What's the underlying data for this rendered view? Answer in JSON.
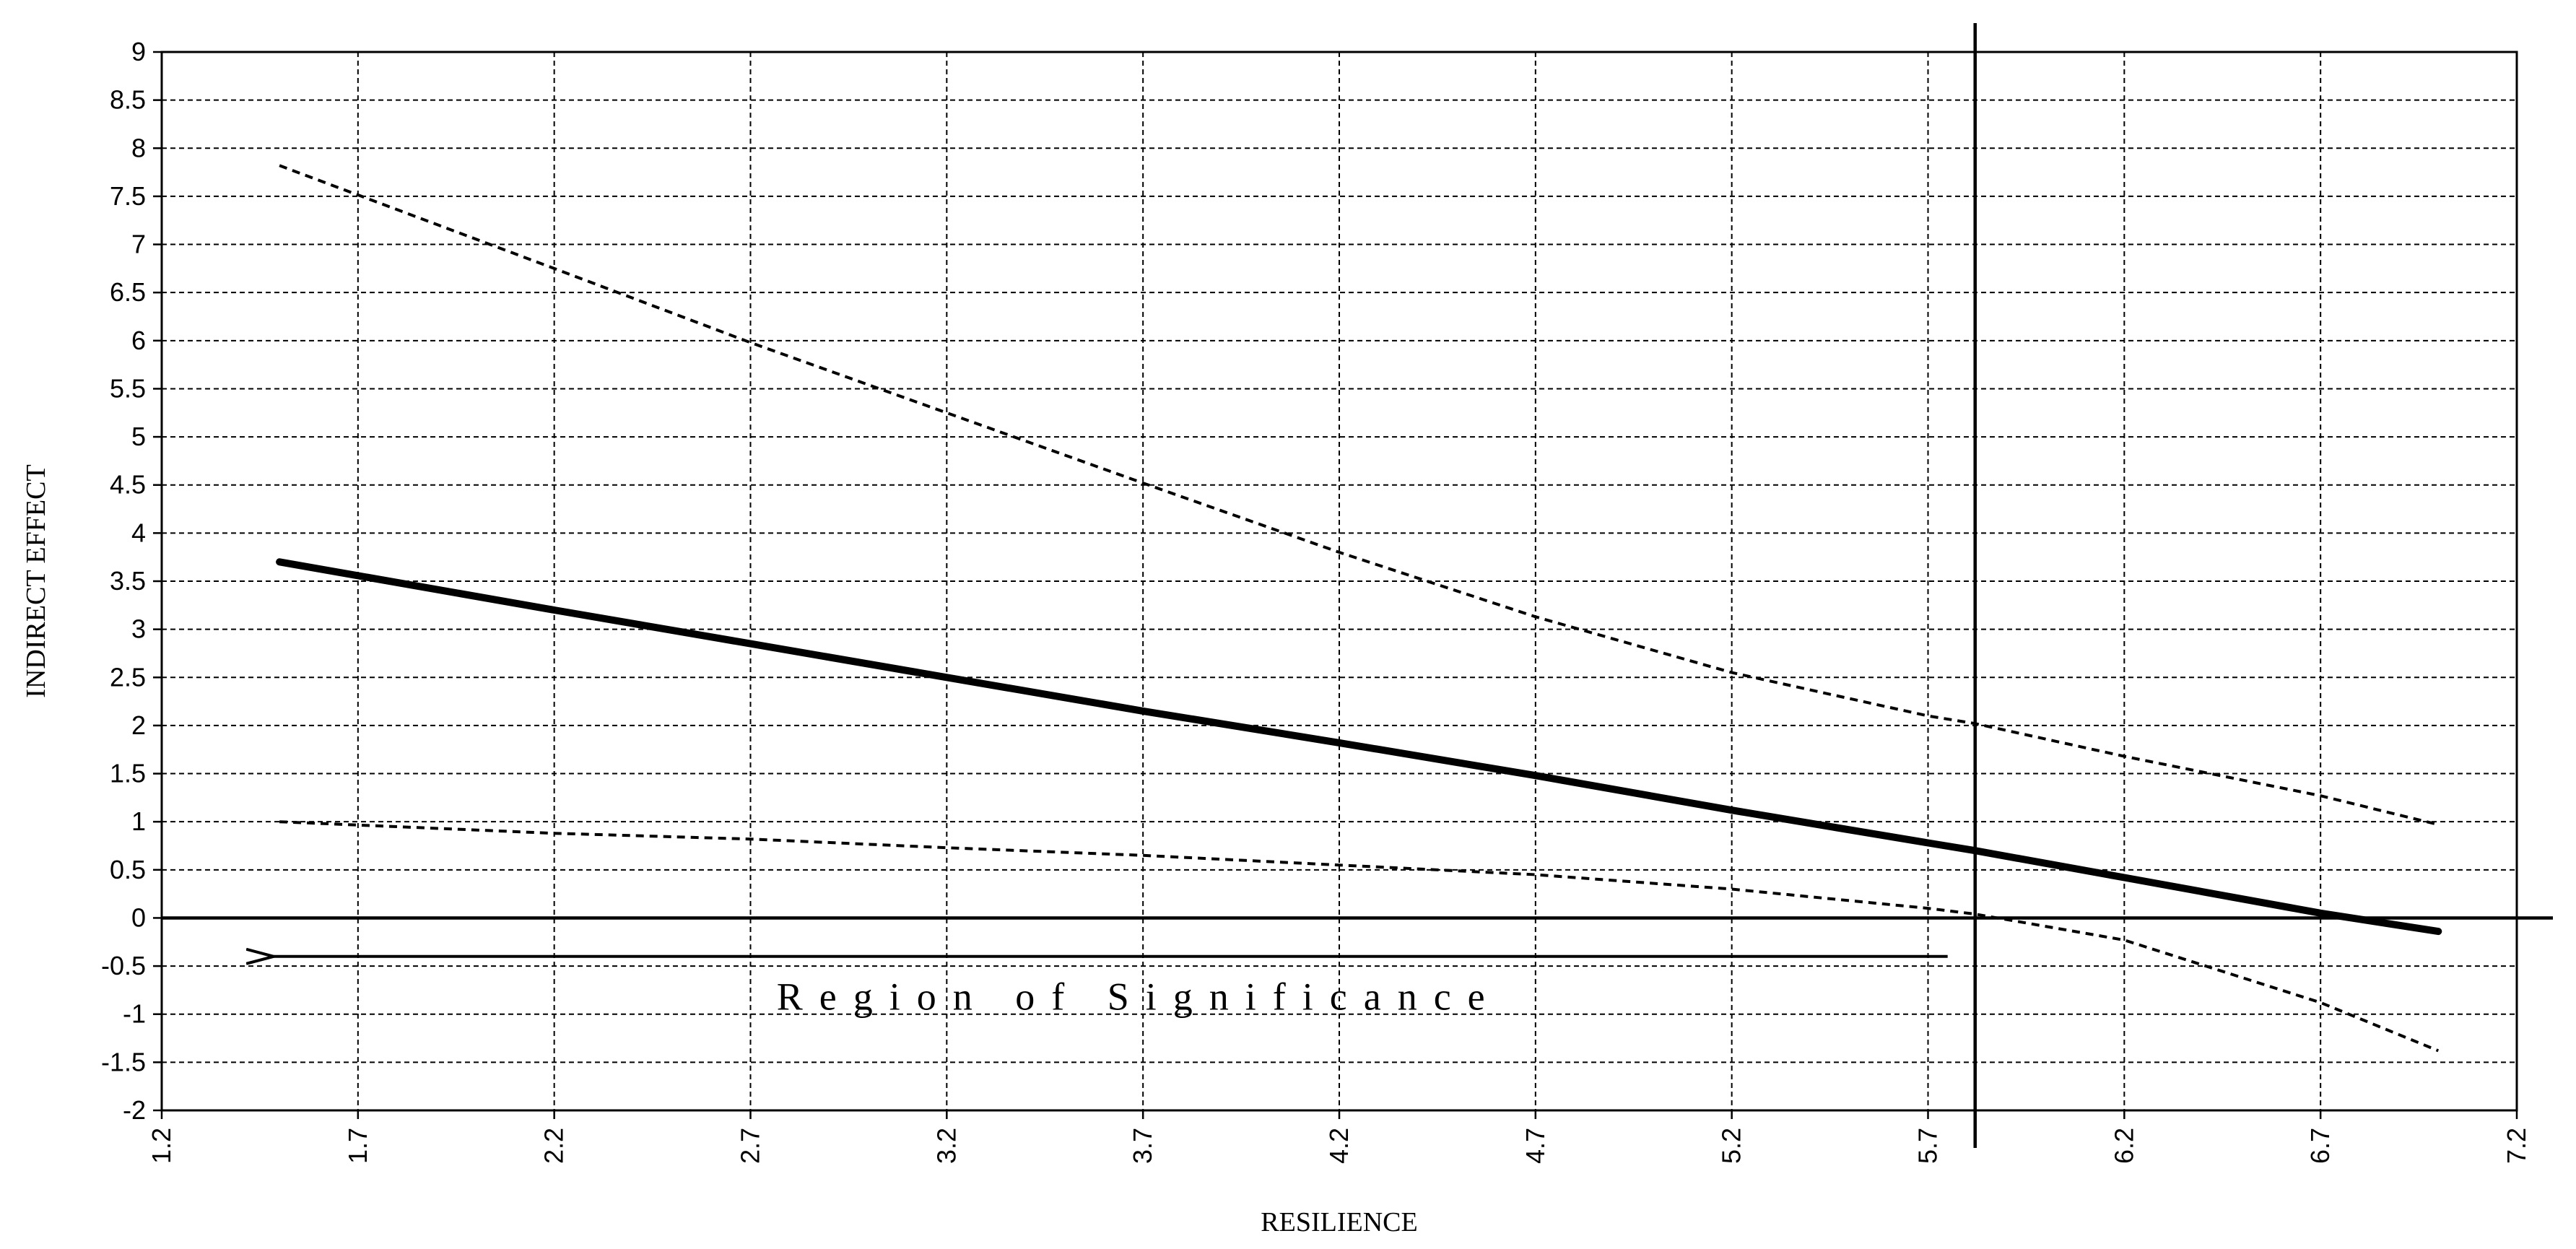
{
  "chart_data": {
    "type": "line",
    "title": "",
    "xlabel": "RESILIENCE",
    "ylabel": "INDIRECT EFFECT",
    "xlim": [
      1.2,
      7.2
    ],
    "ylim": [
      -2,
      9
    ],
    "x_ticks": [
      1.2,
      1.7,
      2.2,
      2.7,
      3.2,
      3.7,
      4.2,
      4.7,
      5.2,
      5.7,
      6.2,
      6.7,
      7.2
    ],
    "x_tick_labels": [
      "1.2",
      "1.7",
      "2.2",
      "2.7",
      "3.2",
      "3.7",
      "4.2",
      "4.7",
      "5.2",
      "5.7",
      "6.2",
      "6.7",
      "7.2"
    ],
    "y_ticks": [
      -2,
      -1.5,
      -1,
      -0.5,
      0,
      0.5,
      1,
      1.5,
      2,
      2.5,
      3,
      3.5,
      4,
      4.5,
      5,
      5.5,
      6,
      6.5,
      7,
      7.5,
      8,
      8.5,
      9
    ],
    "y_tick_labels": [
      "-2",
      "-1.5",
      "-1",
      "-0.5",
      "0",
      "0.5",
      "1",
      "1.5",
      "2",
      "2.5",
      "3",
      "3.5",
      "4",
      "4.5",
      "5",
      "5.5",
      "6",
      "6.5",
      "7",
      "7.5",
      "8",
      "8.5",
      "9"
    ],
    "grid": true,
    "series": [
      {
        "style": "solid-thick",
        "x": [
          1.5,
          2.2,
          2.7,
          3.2,
          3.7,
          4.2,
          4.7,
          5.2,
          5.7,
          5.82,
          6.2,
          6.7,
          7.0
        ],
        "y": [
          3.7,
          3.2,
          2.85,
          2.5,
          2.15,
          1.82,
          1.48,
          1.12,
          0.78,
          0.7,
          0.42,
          0.05,
          -0.14
        ]
      },
      {
        "style": "dashed",
        "x": [
          1.5,
          2.2,
          2.7,
          3.2,
          3.7,
          4.2,
          4.7,
          5.2,
          5.7,
          5.82,
          6.2,
          6.7,
          7.0
        ],
        "y": [
          7.82,
          6.75,
          5.98,
          5.25,
          4.52,
          3.8,
          3.13,
          2.55,
          2.1,
          2.02,
          1.68,
          1.27,
          0.97
        ]
      },
      {
        "style": "dashed",
        "x": [
          1.5,
          2.2,
          2.7,
          3.2,
          3.7,
          4.2,
          4.7,
          5.2,
          5.7,
          5.82,
          6.2,
          6.7,
          7.0
        ],
        "y": [
          1.0,
          0.88,
          0.82,
          0.73,
          0.65,
          0.55,
          0.45,
          0.3,
          0.1,
          0.04,
          -0.23,
          -0.88,
          -1.38
        ]
      }
    ],
    "reference_lines": {
      "horizontal_y": 0,
      "vertical_x": 5.82
    },
    "annotations": [
      {
        "text": "Region of Significance",
        "arrow_from_x": 5.75,
        "arrow_to_x": 1.5,
        "arrow_y": -0.4,
        "text_x": 3.69,
        "text_y": -0.82
      }
    ]
  }
}
